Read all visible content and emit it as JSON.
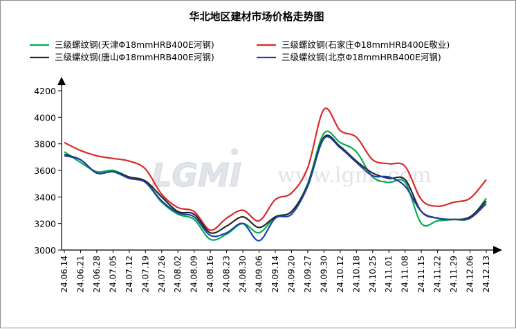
{
  "chart_data": {
    "type": "line",
    "title": "华北地区建材市场价格走势图",
    "watermark": {
      "logo": "LGMI",
      "site": "www.lgmi.com"
    },
    "xlabel": "",
    "ylabel": "",
    "ylim": [
      3000,
      4200
    ],
    "yticks": [
      "3000",
      "3200",
      "3400",
      "3600",
      "3800",
      "4000",
      "4200"
    ],
    "grid": false,
    "legend_position": "top",
    "x": [
      "24.06.14",
      "24.06.21",
      "24.06.28",
      "24.07.05",
      "24.07.12",
      "24.07.19",
      "24.07.26",
      "24.08.02",
      "24.08.09",
      "24.08.16",
      "24.08.23",
      "24.08.30",
      "24.09.06",
      "24.09.14",
      "24.09.20",
      "24.09.27",
      "24.09.30",
      "24.10.12",
      "24.10.18",
      "24.10.25",
      "24.11.01",
      "24.11.08",
      "24.11.15",
      "24.11.22",
      "24.11.29",
      "24.12.06",
      "24.12.13"
    ],
    "series": [
      {
        "name": "三级螺纹钢(天津Φ18mmHRB400E河钢)",
        "color": "#00b050",
        "values": [
          3740,
          3660,
          3590,
          3600,
          3550,
          3510,
          3360,
          3270,
          3230,
          3080,
          3120,
          3200,
          3130,
          3250,
          3290,
          3500,
          3880,
          3810,
          3740,
          3550,
          3510,
          3510,
          3200,
          3220,
          3230,
          3240,
          3390
        ]
      },
      {
        "name": "三级螺纹钢(石家庄Φ18mmHRB400E敬业)",
        "color": "#d9292a",
        "values": [
          3810,
          3750,
          3710,
          3690,
          3670,
          3610,
          3420,
          3320,
          3290,
          3150,
          3240,
          3300,
          3220,
          3380,
          3430,
          3620,
          4060,
          3900,
          3850,
          3680,
          3650,
          3630,
          3380,
          3330,
          3360,
          3390,
          3530
        ]
      },
      {
        "name": "三级螺纹钢(唐山Φ18mmHRB400E河钢)",
        "color": "#262626",
        "values": [
          3720,
          3680,
          3580,
          3590,
          3550,
          3520,
          3400,
          3290,
          3270,
          3130,
          3180,
          3250,
          3170,
          3250,
          3290,
          3490,
          3850,
          3780,
          3670,
          3580,
          3540,
          3530,
          3290,
          3240,
          3230,
          3250,
          3370
        ]
      },
      {
        "name": "三级螺纹钢(北京Φ18mmHRB400E河钢)",
        "color": "#1f3fa6",
        "values": [
          3710,
          3680,
          3580,
          3590,
          3540,
          3510,
          3370,
          3280,
          3250,
          3110,
          3130,
          3200,
          3070,
          3240,
          3270,
          3480,
          3840,
          3770,
          3660,
          3560,
          3550,
          3480,
          3290,
          3240,
          3230,
          3240,
          3350
        ]
      }
    ]
  }
}
